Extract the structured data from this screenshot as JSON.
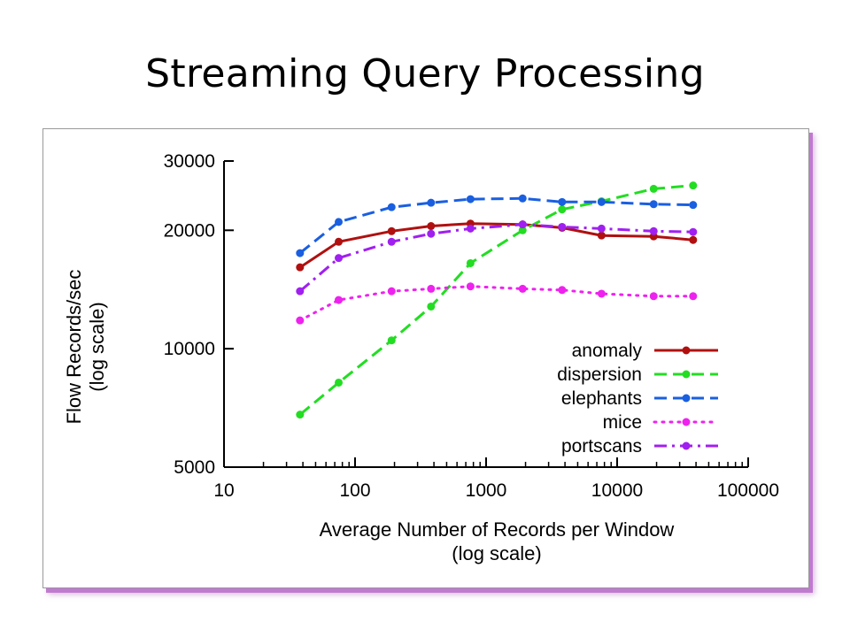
{
  "slide": {
    "title": "Streaming Query Processing"
  },
  "chart_data": {
    "type": "line",
    "title": "",
    "xlabel": "Average Number of Records per Window",
    "xlabel_note": "(log scale)",
    "ylabel": "Flow Records/sec",
    "ylabel_note": "(log scale)",
    "x_scale": "log",
    "y_scale": "log",
    "xlim": [
      10,
      100000
    ],
    "ylim": [
      5000,
      30000
    ],
    "x_ticks": [
      10,
      100,
      1000,
      10000,
      100000
    ],
    "x_tick_labels": [
      "10",
      "100",
      "1000",
      "10000",
      "100000"
    ],
    "y_ticks": [
      5000,
      10000,
      20000,
      30000
    ],
    "y_tick_labels": [
      "5000",
      "10000",
      "20000",
      "30000"
    ],
    "grid": false,
    "legend_position": "bottom-right",
    "x": [
      38,
      75,
      190,
      380,
      760,
      1900,
      3800,
      7600,
      19000,
      38000
    ],
    "series": [
      {
        "name": "anomaly",
        "color": "#b01010",
        "dash": "solid",
        "values": [
          16100,
          18700,
          19900,
          20500,
          20800,
          20700,
          20300,
          19400,
          19300,
          18900
        ]
      },
      {
        "name": "dispersion",
        "color": "#22dd22",
        "dash": "dashed",
        "values": [
          6800,
          8200,
          10500,
          12800,
          16500,
          20000,
          22600,
          23700,
          25500,
          26000
        ]
      },
      {
        "name": "elephants",
        "color": "#1a5fe0",
        "dash": "dashed",
        "values": [
          17500,
          21000,
          22900,
          23500,
          24000,
          24100,
          23600,
          23600,
          23300,
          23200
        ]
      },
      {
        "name": "mice",
        "color": "#ee22ee",
        "dash": "dotted",
        "values": [
          11800,
          13300,
          14000,
          14200,
          14400,
          14200,
          14100,
          13800,
          13600,
          13600
        ]
      },
      {
        "name": "portscans",
        "color": "#a020f0",
        "dash": "dashdot",
        "values": [
          14000,
          17000,
          18700,
          19600,
          20200,
          20700,
          20400,
          20200,
          19900,
          19800
        ]
      }
    ]
  }
}
